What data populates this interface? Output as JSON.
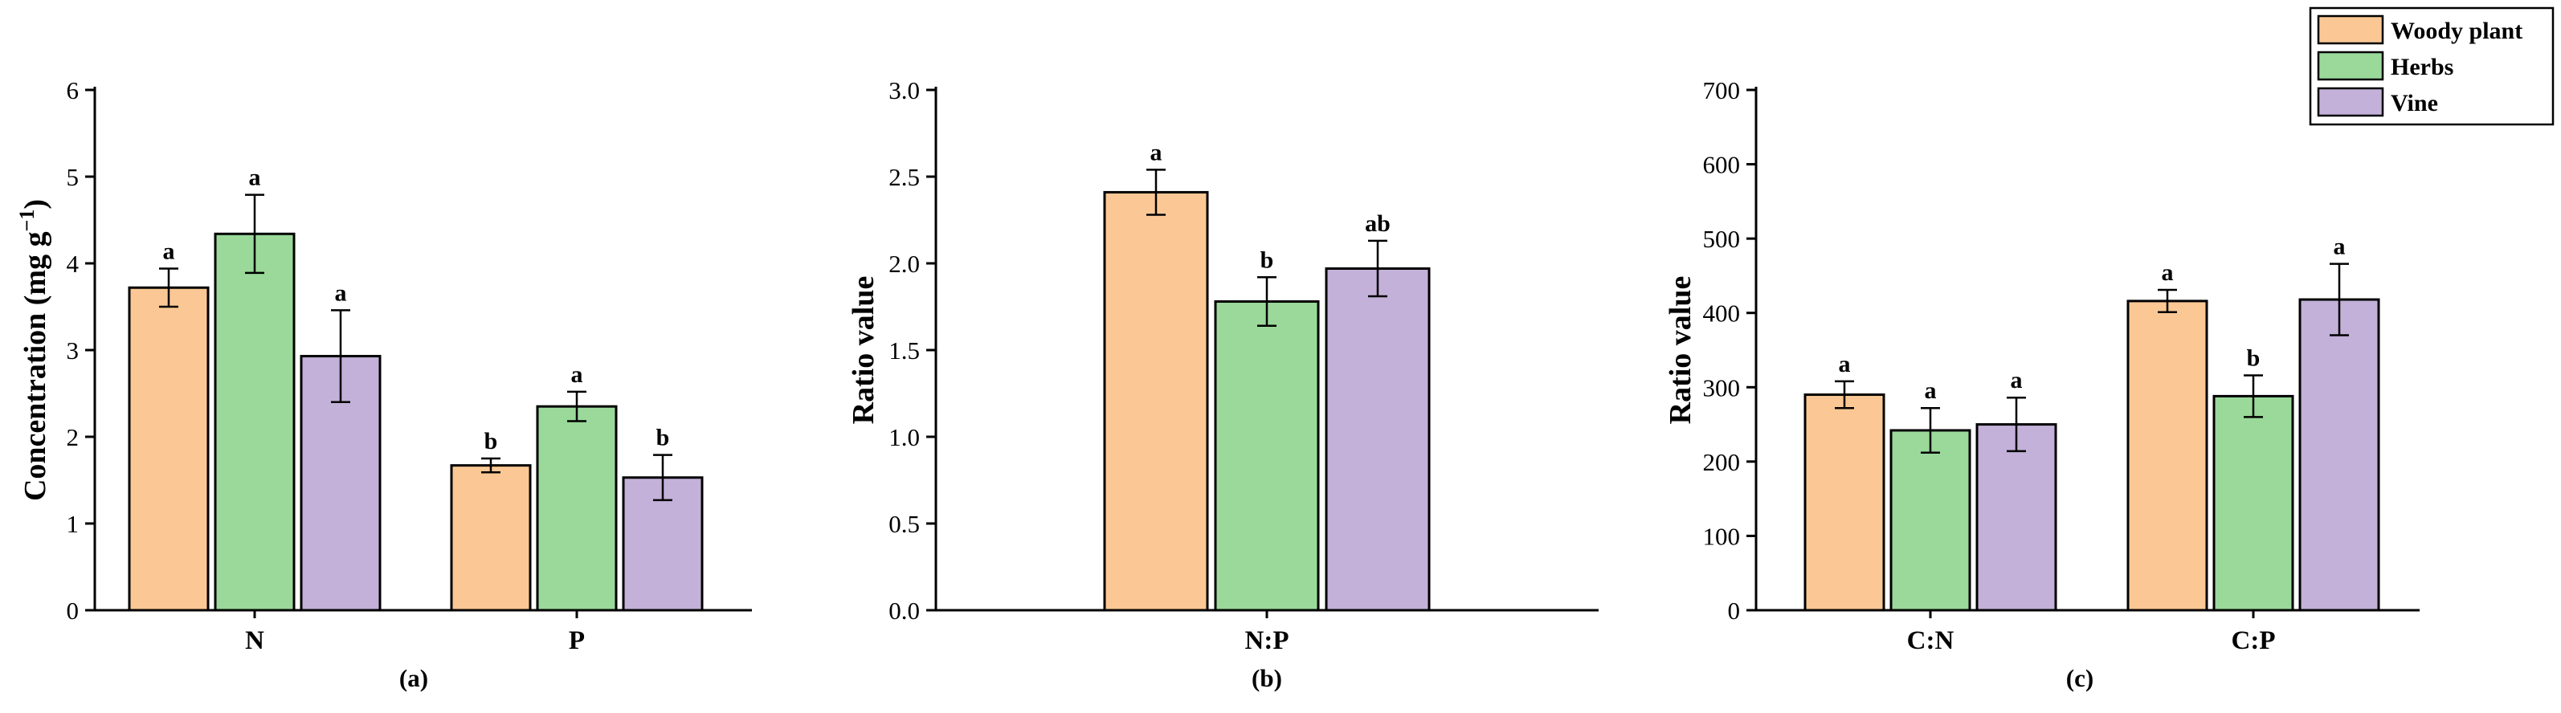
{
  "colors": {
    "Woody plant": "#fbc895",
    "Herbs": "#9ad99a",
    "Vine": "#c3b1d9"
  },
  "legend": [
    "Woody plant",
    "Herbs",
    "Vine"
  ],
  "chart_data": [
    {
      "type": "bar",
      "panel": "(a)",
      "ylabel": "Concentration (mg g",
      "ylabel_sup": "−1",
      "ylabel_close": ")",
      "ylim": [
        0,
        6
      ],
      "yticks": [
        0,
        1,
        2,
        3,
        4,
        5,
        6
      ],
      "categories": [
        "N",
        "P"
      ],
      "series": [
        {
          "name": "Woody plant",
          "values": [
            3.72,
            1.67
          ],
          "errors": [
            0.22,
            0.08
          ],
          "letters": [
            "a",
            "b"
          ]
        },
        {
          "name": "Herbs",
          "values": [
            4.34,
            2.35
          ],
          "errors": [
            0.45,
            0.17
          ],
          "letters": [
            "a",
            "a"
          ]
        },
        {
          "name": "Vine",
          "values": [
            2.93,
            1.53
          ],
          "errors": [
            0.53,
            0.26
          ],
          "letters": [
            "a",
            "b"
          ]
        }
      ]
    },
    {
      "type": "bar",
      "panel": "(b)",
      "ylabel": "Ratio value",
      "ylim": [
        0,
        3.0
      ],
      "yticks": [
        "0.0",
        "0.5",
        "1.0",
        "1.5",
        "2.0",
        "2.5",
        "3.0"
      ],
      "categories": [
        "N:P"
      ],
      "series": [
        {
          "name": "Woody plant",
          "values": [
            2.41
          ],
          "errors": [
            0.13
          ],
          "letters": [
            "a"
          ]
        },
        {
          "name": "Herbs",
          "values": [
            1.78
          ],
          "errors": [
            0.14
          ],
          "letters": [
            "b"
          ]
        },
        {
          "name": "Vine",
          "values": [
            1.97
          ],
          "errors": [
            0.16
          ],
          "letters": [
            "ab"
          ]
        }
      ]
    },
    {
      "type": "bar",
      "panel": "(c)",
      "ylabel": "Ratio value",
      "ylim": [
        0,
        700
      ],
      "yticks": [
        0,
        100,
        200,
        300,
        400,
        500,
        600,
        700
      ],
      "categories": [
        "C:N",
        "C:P"
      ],
      "series": [
        {
          "name": "Woody plant",
          "values": [
            290,
            416
          ],
          "errors": [
            18,
            15
          ],
          "letters": [
            "a",
            "a"
          ]
        },
        {
          "name": "Herbs",
          "values": [
            242,
            288
          ],
          "errors": [
            30,
            28
          ],
          "letters": [
            "a",
            "b"
          ]
        },
        {
          "name": "Vine",
          "values": [
            250,
            418
          ],
          "errors": [
            36,
            48
          ],
          "letters": [
            "a",
            "a"
          ]
        }
      ]
    }
  ]
}
